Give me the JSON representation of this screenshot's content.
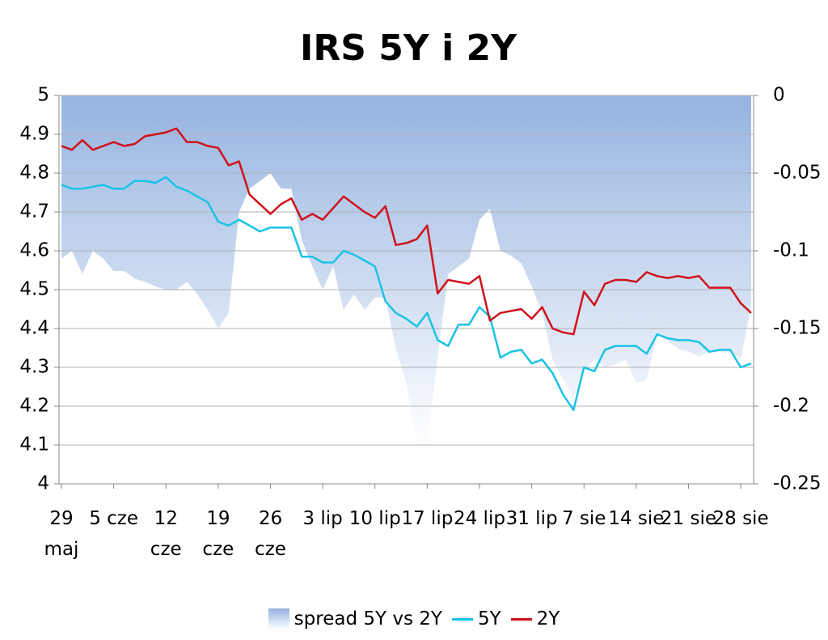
{
  "chart_data": {
    "type": "line",
    "title": "IRS 5Y i 2Y",
    "categories": [
      "29 maj",
      null,
      null,
      null,
      null,
      "5 cze",
      null,
      null,
      null,
      null,
      "12 cze",
      null,
      null,
      null,
      null,
      "19 cze",
      null,
      null,
      null,
      null,
      "26 cze",
      null,
      null,
      null,
      null,
      "3 lip",
      null,
      null,
      null,
      null,
      "10 lip",
      null,
      null,
      null,
      null,
      "17 lip",
      null,
      null,
      null,
      null,
      "24 lip",
      null,
      null,
      null,
      null,
      "31 lip",
      null,
      null,
      null,
      null,
      "7 sie",
      null,
      null,
      null,
      null,
      "14 sie",
      null,
      null,
      null,
      null,
      "21 sie",
      null,
      null,
      null,
      null,
      "28 sie",
      null
    ],
    "series": [
      {
        "name": "spread 5Y vs 2Y",
        "type": "area",
        "axis": "y2",
        "color": "#95b3e0",
        "values": [
          -0.105,
          -0.1,
          -0.115,
          -0.1,
          -0.105,
          -0.113,
          -0.113,
          -0.118,
          -0.12,
          -0.123,
          -0.125,
          -0.125,
          -0.12,
          -0.128,
          -0.138,
          -0.15,
          -0.14,
          -0.075,
          -0.06,
          -0.055,
          -0.05,
          -0.06,
          -0.06,
          -0.093,
          -0.11,
          -0.125,
          -0.11,
          -0.138,
          -0.128,
          -0.138,
          -0.13,
          -0.13,
          -0.163,
          -0.185,
          -0.225,
          -0.225,
          -0.168,
          -0.115,
          -0.11,
          -0.105,
          -0.08,
          -0.073,
          -0.1,
          -0.103,
          -0.108,
          -0.123,
          -0.14,
          -0.17,
          -0.183,
          -0.195,
          -0.178,
          -0.17,
          -0.175,
          -0.173,
          -0.17,
          -0.185,
          -0.183,
          -0.153,
          -0.158,
          -0.163,
          -0.165,
          -0.168,
          -0.165,
          -0.165,
          -0.165,
          -0.17,
          -0.135
        ]
      },
      {
        "name": "5Y",
        "type": "line",
        "color": "#19c3e6",
        "values": [
          4.77,
          4.76,
          4.76,
          4.765,
          4.77,
          4.76,
          4.76,
          4.78,
          4.78,
          4.775,
          4.79,
          4.765,
          4.755,
          4.74,
          4.725,
          4.675,
          4.665,
          4.68,
          4.665,
          4.65,
          4.66,
          4.66,
          4.66,
          4.585,
          4.585,
          4.57,
          4.57,
          4.6,
          4.59,
          4.575,
          4.56,
          4.47,
          4.44,
          4.425,
          4.405,
          4.44,
          4.37,
          4.355,
          4.41,
          4.41,
          4.455,
          4.43,
          4.325,
          4.34,
          4.345,
          4.31,
          4.32,
          4.285,
          4.23,
          4.19,
          4.3,
          4.29,
          4.345,
          4.355,
          4.355,
          4.355,
          4.335,
          4.385,
          4.375,
          4.37,
          4.37,
          4.365,
          4.34,
          4.345,
          4.345,
          4.3,
          4.31
        ]
      },
      {
        "name": "2Y",
        "type": "line",
        "color": "#d0121b",
        "values": [
          4.87,
          4.86,
          4.885,
          4.86,
          4.87,
          4.88,
          4.87,
          4.875,
          4.895,
          4.9,
          4.905,
          4.915,
          4.88,
          4.88,
          4.87,
          4.865,
          4.82,
          4.83,
          4.745,
          4.72,
          4.695,
          4.72,
          4.735,
          4.68,
          4.695,
          4.68,
          4.71,
          4.74,
          4.72,
          4.7,
          4.685,
          4.715,
          4.615,
          4.62,
          4.63,
          4.665,
          4.49,
          4.525,
          4.52,
          4.515,
          4.535,
          4.42,
          4.44,
          4.445,
          4.45,
          4.425,
          4.455,
          4.4,
          4.39,
          4.385,
          4.495,
          4.46,
          4.515,
          4.525,
          4.525,
          4.52,
          4.545,
          4.535,
          4.53,
          4.535,
          4.53,
          4.535,
          4.505,
          4.505,
          4.505,
          4.465,
          4.44
        ]
      }
    ],
    "ylim": [
      4,
      5
    ],
    "yticks": [
      4,
      4.1,
      4.2,
      4.3,
      4.4,
      4.5,
      4.6,
      4.7,
      4.8,
      4.9,
      5
    ],
    "y2lim": [
      -0.25,
      0
    ],
    "y2ticks": [
      -0.25,
      -0.2,
      -0.15,
      -0.1,
      -0.05,
      0
    ],
    "grid": true,
    "legend": "bottom"
  }
}
